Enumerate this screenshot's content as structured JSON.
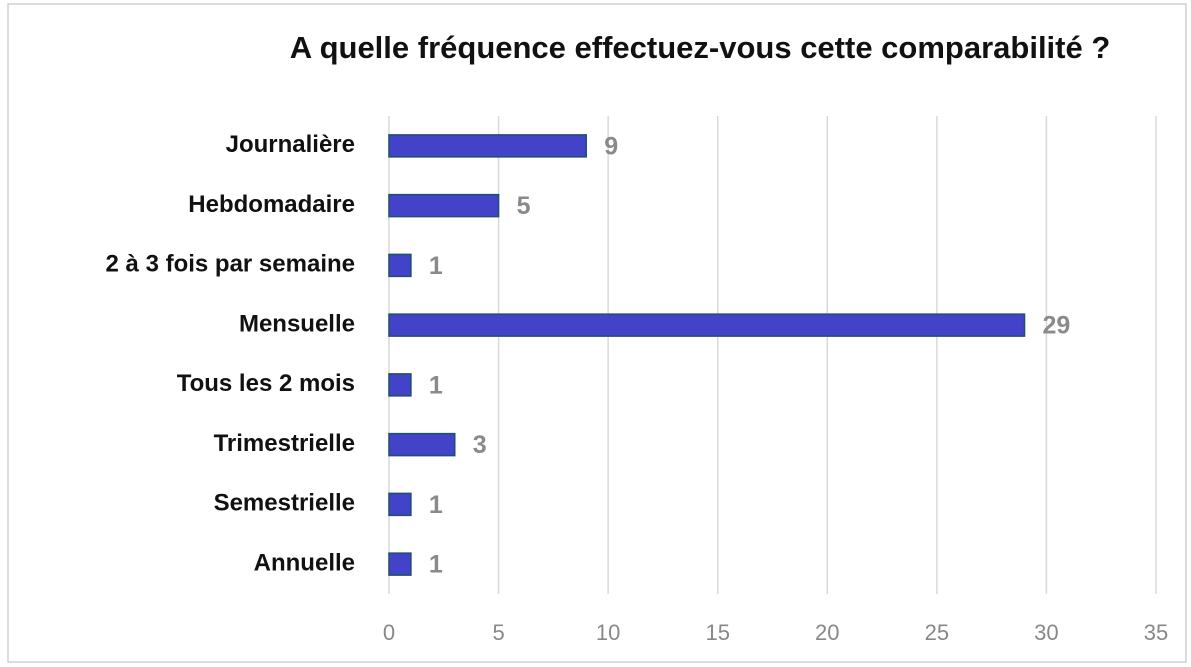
{
  "chart_data": {
    "type": "bar",
    "orientation": "horizontal",
    "title": "A quelle fréquence effectuez-vous cette comparabilité ?",
    "categories": [
      "Journalière",
      "Hebdomadaire",
      "2 à 3 fois par semaine",
      "Mensuelle",
      "Tous les 2 mois",
      "Trimestrielle",
      "Semestrielle",
      "Annuelle"
    ],
    "values": [
      9,
      5,
      1,
      29,
      1,
      3,
      1,
      1
    ],
    "color": "#4343c9",
    "xlim": [
      0,
      35
    ],
    "xticks": [
      0,
      5,
      10,
      15,
      20,
      25,
      30,
      35
    ],
    "grid": true,
    "data_labels": true
  }
}
